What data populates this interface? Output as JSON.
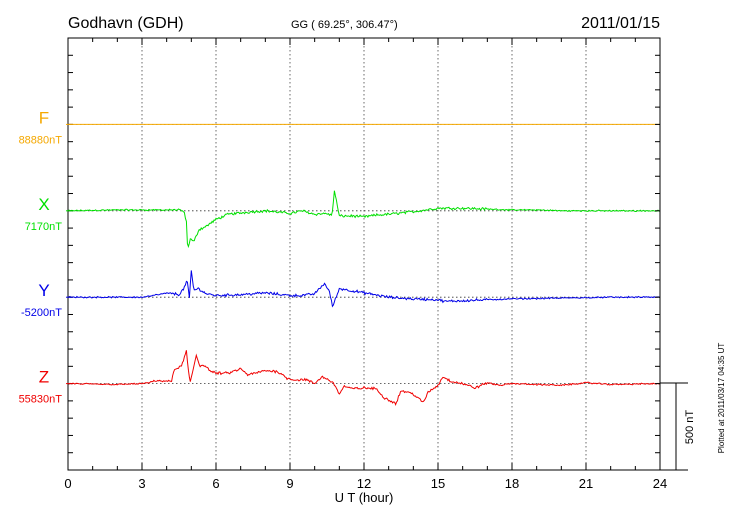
{
  "header": {
    "station": "Godhavn (GDH)",
    "coords": "GG ( 69.25°, 306.47°)",
    "date": "2011/01/15"
  },
  "footer": {
    "plotted": "Plotted at 2011/03/17 04:35 UT",
    "scale_label": "500 nT"
  },
  "chart_data": {
    "type": "line",
    "xlabel": "U T (hour)",
    "xlim": [
      0,
      24
    ],
    "x_ticks": [
      0,
      3,
      6,
      9,
      12,
      15,
      18,
      21,
      24
    ],
    "x_tick_labels": [
      "0",
      "3",
      "6",
      "9",
      "12",
      "15",
      "18",
      "21",
      "24"
    ],
    "y_tick_interval_nT": 100,
    "scale_bar_nT": 500,
    "grid": "dotted vertical every 3 hours, dotted baselines",
    "series": [
      {
        "name": "F",
        "baseline_label": "88880nT",
        "color": "#f5a800",
        "x": [
          0,
          24
        ],
        "y": [
          0,
          0
        ]
      },
      {
        "name": "X",
        "baseline_label": "7170nT",
        "color": "#00e000",
        "x": [
          0,
          2,
          4.5,
          4.7,
          4.8,
          4.85,
          4.95,
          5.1,
          5.3,
          5.6,
          6,
          6.5,
          7.5,
          8,
          9,
          9.5,
          10,
          10.5,
          10.7,
          10.8,
          11,
          11.5,
          12,
          12.5,
          13,
          14,
          15,
          16,
          17,
          18,
          19,
          20,
          24
        ],
        "y": [
          0,
          5,
          5,
          -5,
          -60,
          -230,
          -160,
          -180,
          -110,
          -90,
          -50,
          -20,
          -5,
          0,
          -15,
          0,
          -20,
          -15,
          -30,
          115,
          -30,
          -30,
          -35,
          -25,
          -20,
          -5,
          15,
          15,
          10,
          5,
          5,
          0,
          0
        ]
      },
      {
        "name": "Y",
        "baseline_label": "-5200nT",
        "color": "#0000e8",
        "x": [
          0,
          3,
          4.1,
          4.5,
          4.7,
          4.83,
          4.92,
          5.0,
          5.1,
          5.3,
          5.6,
          6,
          7,
          8,
          9,
          9.5,
          10,
          10.4,
          10.6,
          10.73,
          11,
          12,
          13,
          14,
          15,
          15.3,
          16,
          17,
          18,
          20,
          22,
          24
        ],
        "y": [
          0,
          0,
          25,
          15,
          50,
          100,
          -12,
          155,
          40,
          50,
          20,
          10,
          15,
          25,
          10,
          10,
          20,
          80,
          30,
          -55,
          50,
          25,
          0,
          -10,
          -15,
          -25,
          -20,
          -15,
          -10,
          -5,
          0,
          0
        ]
      },
      {
        "name": "Z",
        "baseline_label": "55830nT",
        "color": "#f00000",
        "x": [
          0,
          2,
          3,
          3.3,
          3.5,
          4.2,
          4.3,
          4.6,
          4.8,
          4.85,
          4.95,
          5.2,
          5.35,
          5.5,
          5.8,
          6,
          6.5,
          7,
          7.3,
          8,
          8.5,
          8.9,
          9.3,
          9.6,
          10,
          10.3,
          10.6,
          10.8,
          11,
          11.2,
          11.5,
          12,
          12.5,
          12.8,
          13.3,
          13.5,
          14,
          14.4,
          14.6,
          15,
          15.2,
          15.5,
          16,
          16.5,
          17,
          17.5,
          18,
          20,
          21,
          22,
          24
        ],
        "y": [
          0,
          -5,
          0,
          5,
          15,
          15,
          80,
          100,
          190,
          110,
          0,
          165,
          100,
          110,
          70,
          60,
          60,
          85,
          50,
          75,
          70,
          30,
          20,
          25,
          0,
          40,
          20,
          -5,
          -60,
          -15,
          -30,
          -25,
          -30,
          -80,
          -115,
          -40,
          -60,
          -110,
          -50,
          -10,
          40,
          15,
          0,
          -25,
          5,
          -10,
          0,
          -10,
          5,
          -5,
          0
        ]
      }
    ]
  }
}
